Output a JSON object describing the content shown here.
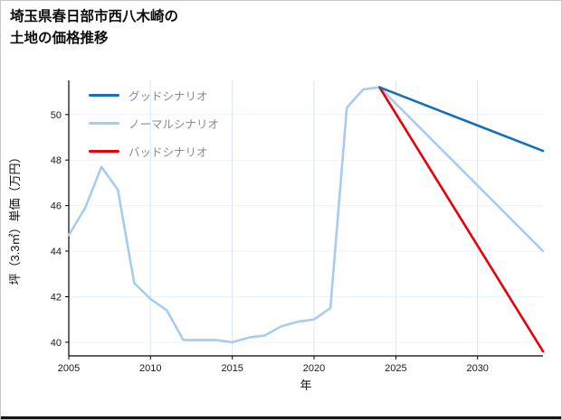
{
  "header": {
    "title_line1": "埼玉県春日部市西八木崎の",
    "title_line2": "土地の価格推移"
  },
  "chart_data": {
    "type": "line",
    "title": "埼玉県春日部市西八木崎の土地の価格推移",
    "xlabel": "年",
    "ylabel": "坪（3.3㎡）単価（万円）",
    "xlim": [
      2005,
      2034
    ],
    "ylim": [
      39.4,
      51.5
    ],
    "xticks": [
      2005,
      2010,
      2015,
      2020,
      2025,
      2030
    ],
    "yticks": [
      40,
      42,
      44,
      46,
      48,
      50
    ],
    "grid": true,
    "legend_position": "upper left",
    "colors": {
      "good": "#1670b8",
      "normal": "#a8ccf0",
      "bad": "#e8000b",
      "grid_vertical": "#d8e5f4",
      "grid_horizontal": "#edf3fb",
      "axis": "#000000",
      "legend_text": "#8a8a8a"
    },
    "series": [
      {
        "name": "グッドシナリオ",
        "color": "#1670b8",
        "x": [
          2024,
          2034
        ],
        "y": [
          51.2,
          48.4
        ]
      },
      {
        "name": "ノーマルシナリオ",
        "color": "#a8ccf0",
        "x": [
          2005,
          2006,
          2007,
          2008,
          2009,
          2010,
          2011,
          2012,
          2013,
          2014,
          2015,
          2016,
          2017,
          2018,
          2019,
          2020,
          2021,
          2022,
          2023,
          2024,
          2034
        ],
        "y": [
          44.7,
          45.9,
          47.7,
          46.7,
          42.6,
          41.9,
          41.4,
          40.1,
          40.1,
          40.1,
          40.0,
          40.2,
          40.3,
          40.7,
          40.9,
          41.0,
          41.5,
          50.3,
          51.1,
          51.2,
          44.0
        ]
      },
      {
        "name": "バッドシナリオ",
        "color": "#e8000b",
        "x": [
          2024,
          2034
        ],
        "y": [
          51.2,
          39.6
        ]
      }
    ]
  }
}
